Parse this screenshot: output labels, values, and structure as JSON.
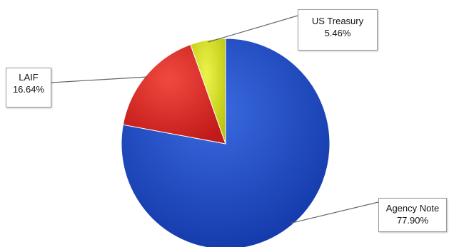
{
  "chart_data": {
    "type": "pie",
    "slices": [
      {
        "label": "Agency Note",
        "value": 77.9,
        "value_text": "77.90%",
        "color": "#1f49c4"
      },
      {
        "label": "LAIF",
        "value": 16.64,
        "value_text": "16.64%",
        "color": "#e02a25"
      },
      {
        "label": "US Treasury",
        "value": 5.46,
        "value_text": "5.46%",
        "color": "#d8e61a"
      }
    ],
    "start_angle_deg": 0,
    "direction": "clockwise"
  }
}
